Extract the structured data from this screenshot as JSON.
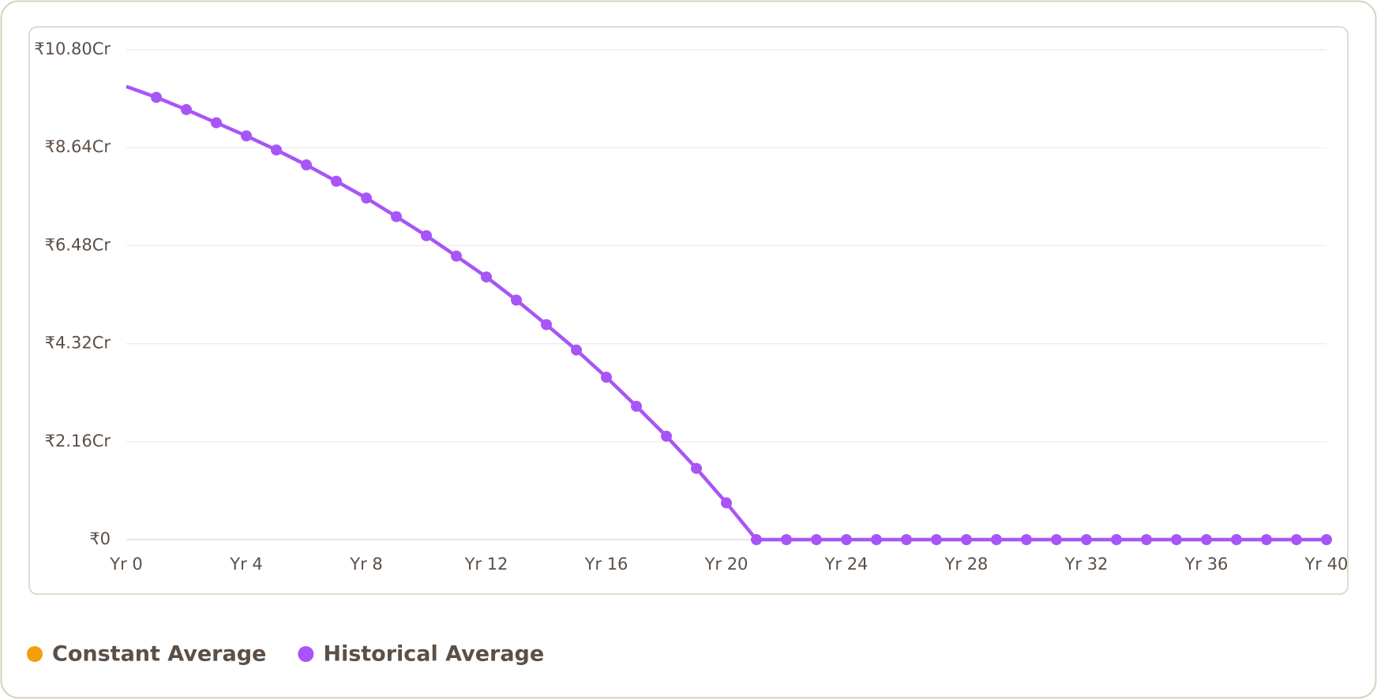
{
  "chart_data": {
    "type": "line",
    "x": [
      0,
      1,
      2,
      3,
      4,
      5,
      6,
      7,
      8,
      9,
      10,
      11,
      12,
      13,
      14,
      15,
      16,
      17,
      18,
      19,
      20,
      21,
      22,
      23,
      24,
      25,
      26,
      27,
      28,
      29,
      30,
      31,
      32,
      33,
      34,
      35,
      36,
      37,
      38,
      39,
      40
    ],
    "series": [
      {
        "name": "Constant Average",
        "color": "#f59e0b",
        "values": [
          null,
          null,
          null,
          null,
          null,
          null,
          null,
          null,
          null,
          null,
          null,
          null,
          null,
          null,
          null,
          null,
          null,
          null,
          null,
          null,
          null,
          null,
          null,
          null,
          null,
          null,
          null,
          null,
          null,
          null,
          null,
          null,
          null,
          null,
          null,
          null,
          null,
          null,
          null,
          null,
          null
        ]
      },
      {
        "name": "Historical Average",
        "color": "#a855f7",
        "values": [
          9.99,
          9.75,
          9.48,
          9.19,
          8.9,
          8.59,
          8.26,
          7.9,
          7.53,
          7.12,
          6.7,
          6.25,
          5.79,
          5.28,
          4.74,
          4.18,
          3.58,
          2.94,
          2.28,
          1.57,
          0.81,
          0,
          0,
          0,
          0,
          0,
          0,
          0,
          0,
          0,
          0,
          0,
          0,
          0,
          0,
          0,
          0,
          0,
          0,
          0,
          0
        ]
      }
    ],
    "xlim": [
      0,
      40
    ],
    "xticks": [
      {
        "value": 0,
        "label": "Yr 0"
      },
      {
        "value": 4,
        "label": "Yr 4"
      },
      {
        "value": 8,
        "label": "Yr 8"
      },
      {
        "value": 12,
        "label": "Yr 12"
      },
      {
        "value": 16,
        "label": "Yr 16"
      },
      {
        "value": 20,
        "label": "Yr 20"
      },
      {
        "value": 24,
        "label": "Yr 24"
      },
      {
        "value": 28,
        "label": "Yr 28"
      },
      {
        "value": 32,
        "label": "Yr 32"
      },
      {
        "value": 36,
        "label": "Yr 36"
      },
      {
        "value": 40,
        "label": "Yr 40"
      }
    ],
    "ylim": [
      0,
      10.8
    ],
    "yticks": [
      {
        "value": 0,
        "label": "₹0"
      },
      {
        "value": 2.16,
        "label": "₹2.16Cr"
      },
      {
        "value": 4.32,
        "label": "₹4.32Cr"
      },
      {
        "value": 6.48,
        "label": "₹6.48Cr"
      },
      {
        "value": 8.64,
        "label": "₹8.64Cr"
      },
      {
        "value": 10.8,
        "label": "₹10.80Cr"
      }
    ],
    "grid": true
  }
}
